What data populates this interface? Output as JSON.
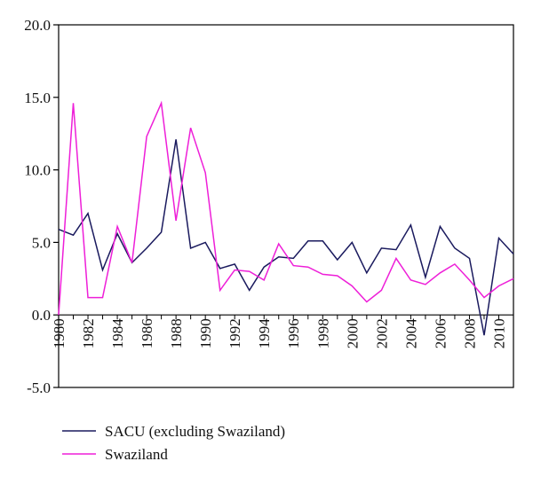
{
  "chart_data": {
    "type": "line",
    "title": "",
    "xlabel": "",
    "ylabel": "",
    "x": [
      1980,
      1981,
      1982,
      1983,
      1984,
      1985,
      1986,
      1987,
      1988,
      1989,
      1990,
      1991,
      1992,
      1993,
      1994,
      1995,
      1996,
      1997,
      1998,
      1999,
      2000,
      2001,
      2002,
      2003,
      2004,
      2005,
      2006,
      2007,
      2008,
      2009,
      2010,
      2011
    ],
    "xlim": [
      1980,
      2011
    ],
    "ylim": [
      -5.0,
      20.0
    ],
    "y_ticks": [
      "-5.0",
      "0.0",
      "5.0",
      "10.0",
      "15.0",
      "20.0"
    ],
    "y_tick_values": [
      -5,
      0,
      5,
      10,
      15,
      20
    ],
    "x_ticks": [
      "1980",
      "1982",
      "1984",
      "1986",
      "1988",
      "1990",
      "1992",
      "1994",
      "1996",
      "1998",
      "2000",
      "2002",
      "2004",
      "2006",
      "2008",
      "2010"
    ],
    "x_tick_values": [
      1980,
      1982,
      1984,
      1986,
      1988,
      1990,
      1992,
      1994,
      1996,
      1998,
      2000,
      2002,
      2004,
      2006,
      2008,
      2010
    ],
    "grid": false,
    "legend_position": "bottom-left",
    "series": [
      {
        "name": "SACU (excluding Swaziland)",
        "color": "#1a1a5e",
        "values": [
          5.9,
          5.5,
          7.0,
          3.1,
          5.6,
          3.6,
          4.6,
          5.7,
          12.1,
          4.6,
          5.0,
          3.2,
          3.5,
          1.7,
          3.3,
          4.0,
          3.9,
          5.1,
          5.1,
          3.8,
          5.0,
          2.9,
          4.6,
          4.5,
          6.2,
          2.6,
          6.1,
          4.6,
          3.9,
          -1.4,
          5.3,
          4.2
        ]
      },
      {
        "name": "Swaziland",
        "color": "#ee1fd8",
        "values": [
          0.0,
          14.6,
          1.2,
          1.2,
          6.1,
          3.6,
          12.3,
          14.6,
          6.5,
          12.9,
          9.8,
          1.7,
          3.1,
          3.0,
          2.4,
          4.9,
          3.4,
          3.3,
          2.8,
          2.7,
          2.0,
          0.9,
          1.7,
          3.9,
          2.4,
          2.1,
          2.9,
          3.5,
          2.4,
          1.2,
          2.0,
          2.5
        ]
      }
    ]
  }
}
